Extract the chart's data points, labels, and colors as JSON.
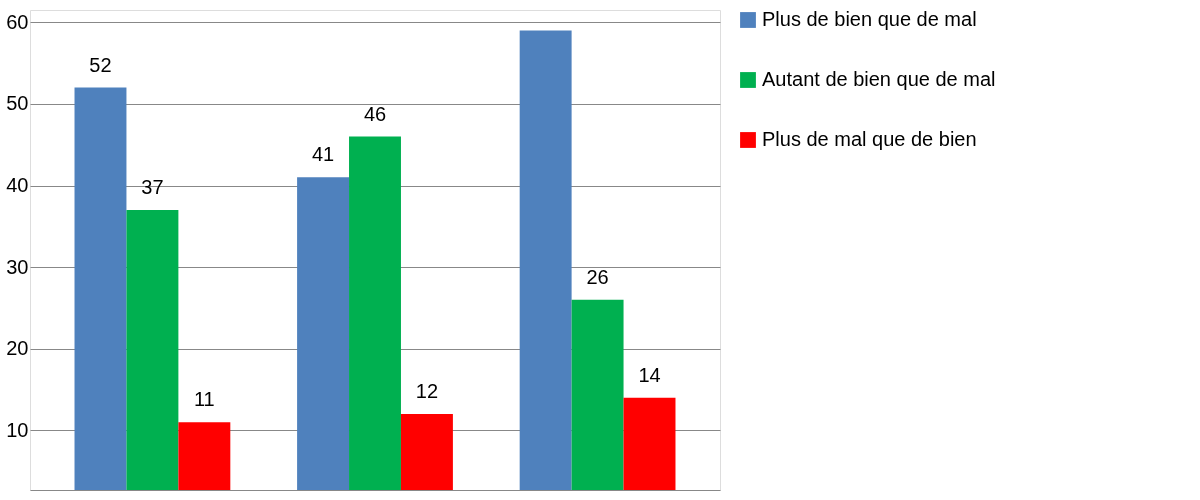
{
  "chart_data": {
    "type": "bar",
    "categories": [
      null,
      null,
      null
    ],
    "series": [
      {
        "name": "Plus de bien que de mal",
        "color": "#4f81bd",
        "values": [
          52,
          41,
          59
        ],
        "value_labels": [
          "52",
          "41",
          null
        ]
      },
      {
        "name": "Autant de bien que de mal",
        "color": "#00b050",
        "values": [
          37,
          46,
          26
        ],
        "value_labels": [
          "37",
          "46",
          "26"
        ]
      },
      {
        "name": "Plus de mal que de bien",
        "color": "#ff0000",
        "values": [
          11,
          12,
          14
        ],
        "value_labels": [
          "11",
          "12",
          "14"
        ]
      }
    ],
    "ylim": [
      2.7,
      61.5
    ],
    "yticks": [
      10,
      20,
      30,
      40,
      50,
      60
    ],
    "grid": "y",
    "legend": "right",
    "tick_labels": "y"
  }
}
